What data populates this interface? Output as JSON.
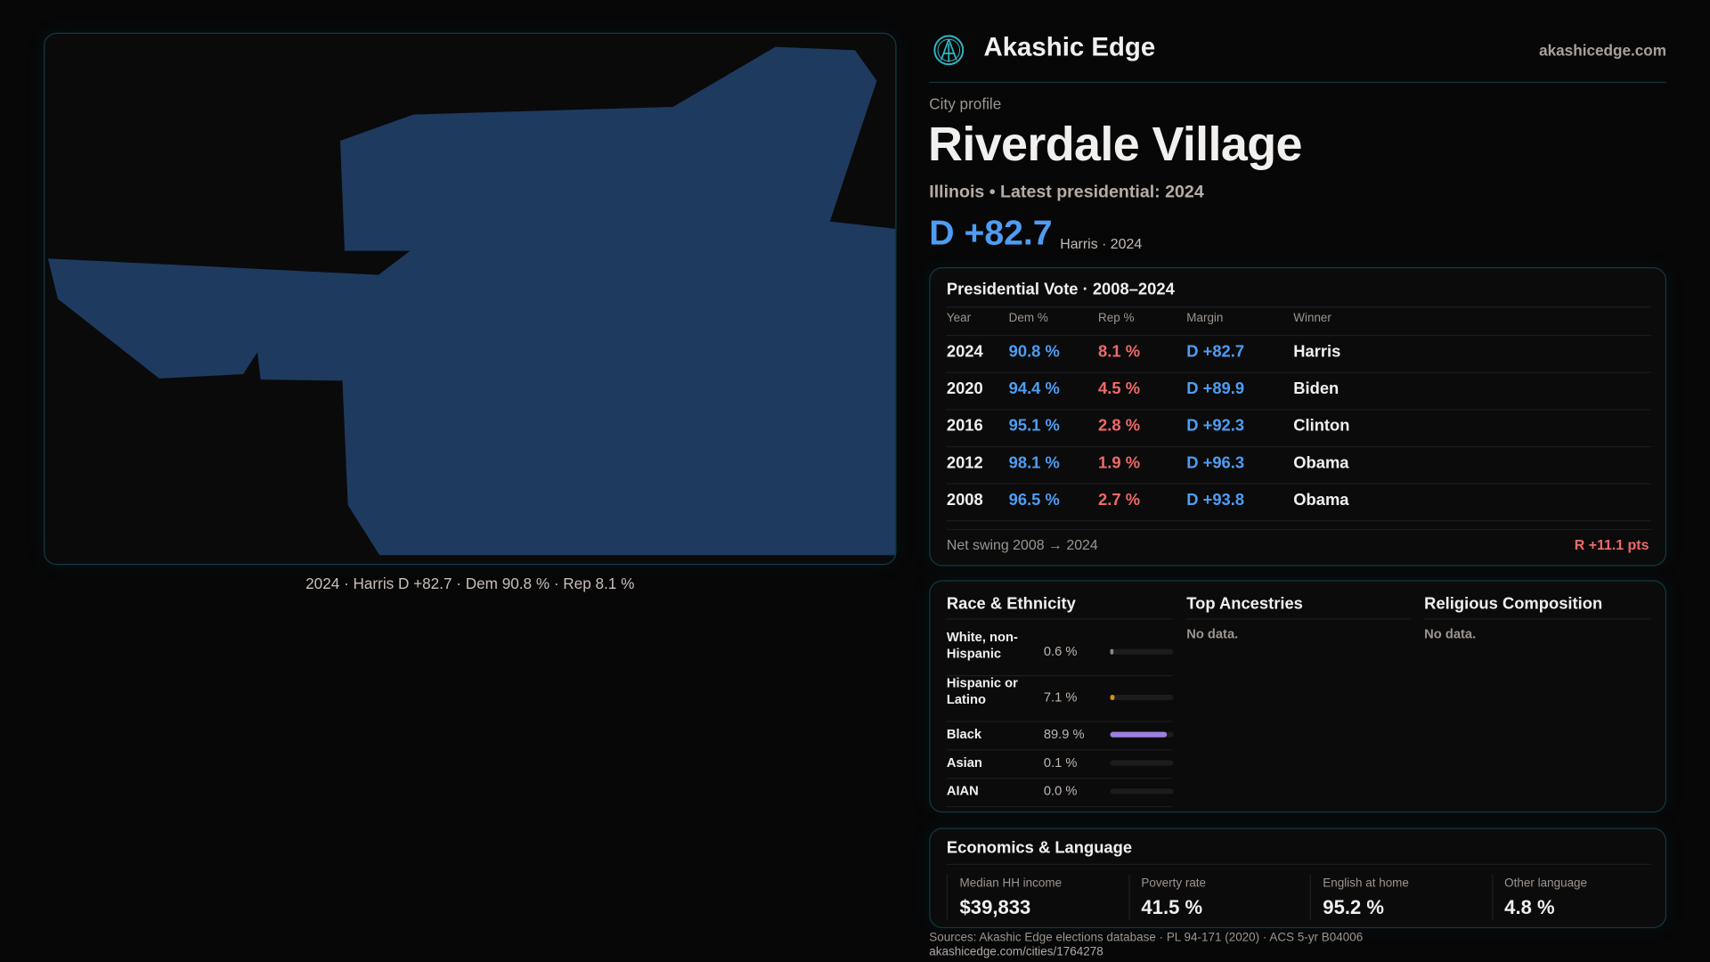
{
  "brand": {
    "name": "Akashic Edge",
    "domain": "akashicedge.com"
  },
  "map": {
    "caption": "2024 · Harris D +82.7 · Dem 90.8 % · Rep 8.1 %",
    "fill_color": "#1e3a5f"
  },
  "profile": {
    "kicker": "City profile",
    "title": "Riverdale Village",
    "subtitle": "Illinois • Latest presidential: 2024",
    "margin": "D +82.7",
    "margin_note": "Harris · 2024"
  },
  "vote": {
    "title": "Presidential Vote · 2008–2024",
    "headers": [
      "Year",
      "Dem %",
      "Rep %",
      "Margin",
      "Winner"
    ],
    "rows": [
      {
        "year": "2024",
        "dem": "90.8 %",
        "rep": "8.1 %",
        "margin": "D +82.7",
        "winner": "Harris"
      },
      {
        "year": "2020",
        "dem": "94.4 %",
        "rep": "4.5 %",
        "margin": "D +89.9",
        "winner": "Biden"
      },
      {
        "year": "2016",
        "dem": "95.1 %",
        "rep": "2.8 %",
        "margin": "D +92.3",
        "winner": "Clinton"
      },
      {
        "year": "2012",
        "dem": "98.1 %",
        "rep": "1.9 %",
        "margin": "D +96.3",
        "winner": "Obama"
      },
      {
        "year": "2008",
        "dem": "96.5 %",
        "rep": "2.7 %",
        "margin": "D +93.8",
        "winner": "Obama"
      }
    ],
    "swing_label": "Net swing 2008 → 2024",
    "swing_value": "R +11.1 pts"
  },
  "race": {
    "title": "Race & Ethnicity",
    "rows": [
      {
        "label": "White, non-Hispanic",
        "value": "0.6 %",
        "pct": 0.6,
        "color": "#8a8a8a"
      },
      {
        "label": "Hispanic or Latino",
        "value": "7.1 %",
        "pct": 7.1,
        "color": "#d4900f"
      },
      {
        "label": "Black",
        "value": "89.9 %",
        "pct": 89.9,
        "color": "#9b80e0"
      },
      {
        "label": "Asian",
        "value": "0.1 %",
        "pct": 0.1,
        "color": "#8a8a8a"
      },
      {
        "label": "AIAN",
        "value": "0.0 %",
        "pct": 0.0,
        "color": "#8a8a8a"
      }
    ]
  },
  "ancestries": {
    "title": "Top Ancestries",
    "empty": "No data."
  },
  "religion": {
    "title": "Religious Composition",
    "empty": "No data."
  },
  "econ": {
    "title": "Economics & Language",
    "stats": [
      {
        "label": "Median HH income",
        "value": "$39,833"
      },
      {
        "label": "Poverty rate",
        "value": "41.5 %"
      },
      {
        "label": "English at home",
        "value": "95.2 %"
      },
      {
        "label": "Other language",
        "value": "4.8 %"
      }
    ]
  },
  "footer": {
    "sources": "Sources: Akashic Edge elections database · PL 94-171 (2020) · ACS 5-yr B04006",
    "url": "akashicedge.com/cities/1764278"
  }
}
